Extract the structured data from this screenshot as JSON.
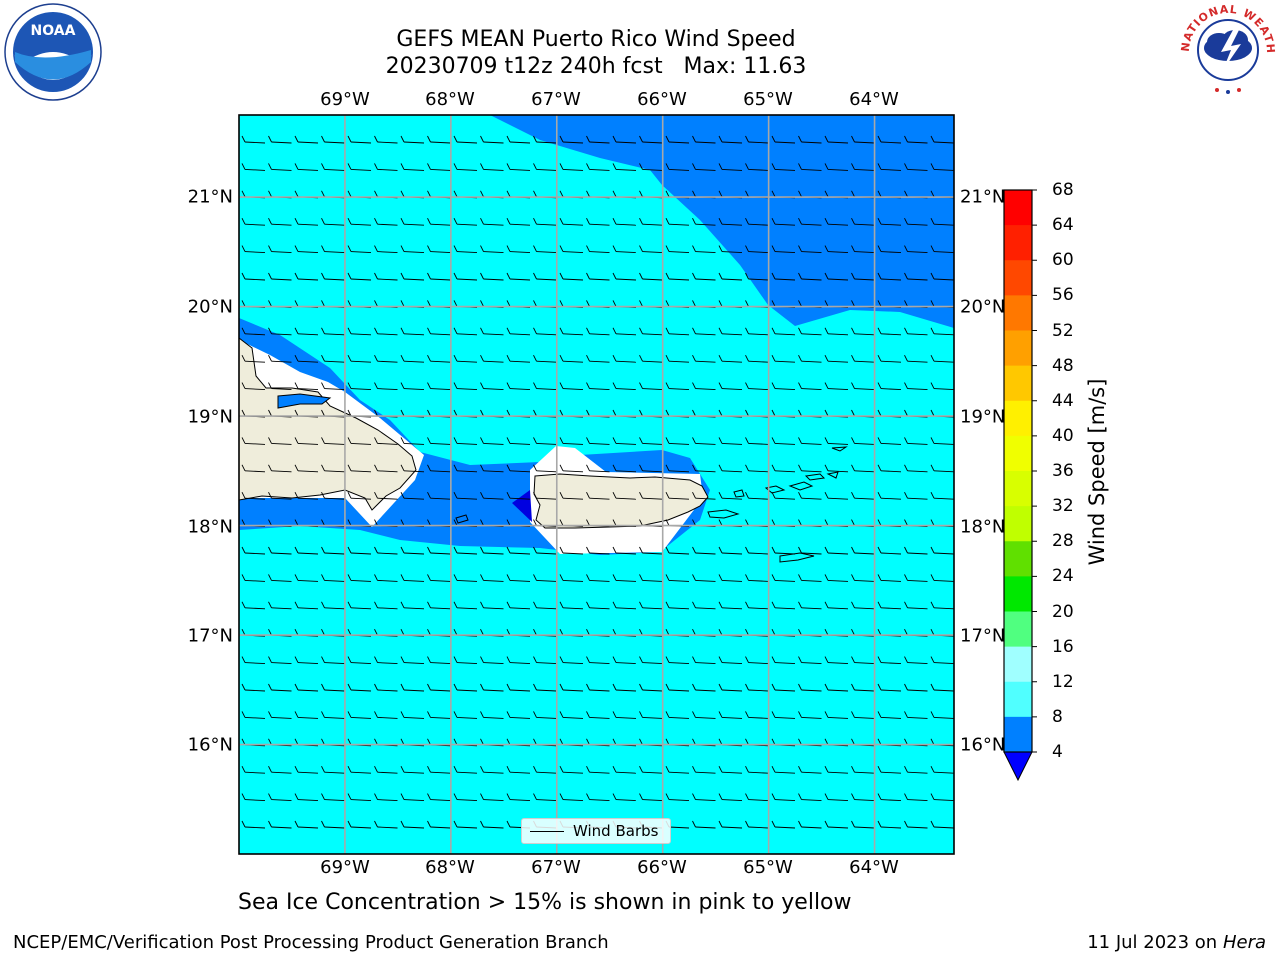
{
  "title": {
    "line1": "GEFS MEAN Puerto Rico Wind Speed",
    "line2": "20230709 t12z 240h fcst   Max: 11.63"
  },
  "logos": {
    "left": {
      "name": "noaa-logo",
      "text": "NOAA"
    },
    "right": {
      "name": "nws-logo",
      "text": "NATIONAL WEATHER SERVICE"
    }
  },
  "map": {
    "lon_labels": [
      "69°W",
      "68°W",
      "67°W",
      "66°W",
      "65°W",
      "64°W"
    ],
    "lat_labels": [
      "21°N",
      "20°N",
      "19°N",
      "18°N",
      "17°N",
      "16°N"
    ],
    "lon_range": [
      -70.0,
      -63.25
    ],
    "lat_range": [
      15.0,
      21.75
    ],
    "gridlines": true,
    "colors": {
      "ocean_light": "#00ffff",
      "ocean_blue": "#0080ff",
      "land": "#efeddb",
      "deep_blue": "#0000e0"
    }
  },
  "legend": {
    "label": "Wind Barbs",
    "placement": "bottom-center"
  },
  "colorbar": {
    "title": "Wind Speed [m/s]",
    "ticks": [
      "68",
      "64",
      "60",
      "56",
      "52",
      "48",
      "44",
      "40",
      "36",
      "32",
      "28",
      "24",
      "20",
      "16",
      "12",
      "8",
      "4"
    ],
    "colors": [
      "#ff0000",
      "#ff2000",
      "#ff4800",
      "#ff7800",
      "#ffa000",
      "#ffc800",
      "#fff000",
      "#ffff00",
      "#e8ff00",
      "#c8ff00",
      "#80ff00",
      "#00f000",
      "#00e800",
      "#50ff80",
      "#a0ffff",
      "#50ffff",
      "#00ffff",
      "#0080ff"
    ],
    "under_color": "#0000ff"
  },
  "note": "Sea Ice Concentration > 15% is shown in pink to yellow",
  "footer": {
    "left": "NCEP/EMC/Verification Post Processing Product Generation Branch",
    "right_prefix": "11 Jul 2023 on ",
    "right_host": "Hera"
  }
}
